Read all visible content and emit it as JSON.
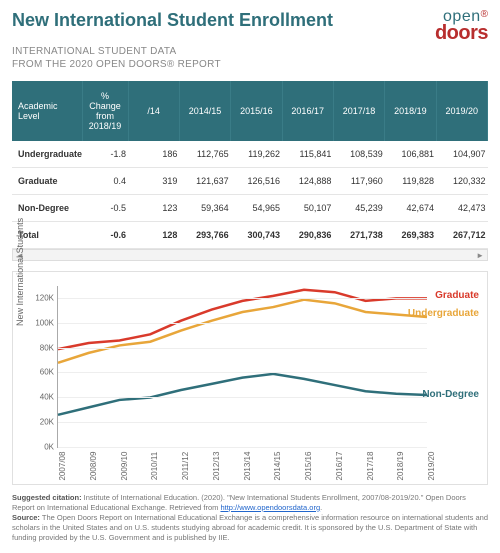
{
  "header": {
    "title": "New International Student Enrollment",
    "subtitle_line1": "INTERNATIONAL STUDENT DATA",
    "subtitle_line2": "FROM THE 2020 OPEN DOORS® REPORT",
    "logo_top": "open",
    "logo_reg": "®",
    "logo_bottom": "doors"
  },
  "table": {
    "header_level": "Academic Level",
    "header_change": "% Change from 2018/19",
    "year_cols": [
      "/14",
      "2014/15",
      "2015/16",
      "2016/17",
      "2017/18",
      "2018/19",
      "2019/20"
    ],
    "rows": [
      {
        "label": "Undergraduate",
        "change": "-1.8",
        "vals": [
          "186",
          "112,765",
          "119,262",
          "115,841",
          "108,539",
          "106,881",
          "104,907"
        ]
      },
      {
        "label": "Graduate",
        "change": "0.4",
        "vals": [
          "319",
          "121,637",
          "126,516",
          "124,888",
          "117,960",
          "119,828",
          "120,332"
        ]
      },
      {
        "label": "Non-Degree",
        "change": "-0.5",
        "vals": [
          "123",
          "59,364",
          "54,965",
          "50,107",
          "45,239",
          "42,674",
          "42,473"
        ]
      },
      {
        "label": "Total",
        "change": "-0.6",
        "vals": [
          "128",
          "293,766",
          "300,743",
          "290,836",
          "271,738",
          "269,383",
          "267,712"
        ],
        "total": true
      }
    ]
  },
  "chart": {
    "y_label": "New International Students",
    "y_min": 0,
    "y_max": 130000,
    "y_ticks": [
      0,
      20000,
      40000,
      60000,
      80000,
      100000,
      120000
    ],
    "y_tick_labels": [
      "0K",
      "20K",
      "40K",
      "60K",
      "80K",
      "100K",
      "120K"
    ],
    "x_labels": [
      "2007/08",
      "2008/09",
      "2009/10",
      "2010/11",
      "2011/12",
      "2012/13",
      "2013/14",
      "2014/15",
      "2015/16",
      "2016/17",
      "2017/18",
      "2018/19",
      "2019/20"
    ],
    "series": [
      {
        "name": "Graduate",
        "color": "#d93a2b",
        "label_y": 122000,
        "values": [
          79000,
          84000,
          86000,
          91000,
          102000,
          111000,
          118000,
          122000,
          127000,
          125000,
          118000,
          120000,
          120000
        ]
      },
      {
        "name": "Undergraduate",
        "color": "#e8a63a",
        "label_y": 107000,
        "values": [
          68000,
          76000,
          82000,
          85000,
          94000,
          102000,
          109000,
          113000,
          119000,
          116000,
          109000,
          107000,
          105000
        ]
      },
      {
        "name": "Non-Degree",
        "color": "#2f6f7a",
        "label_y": 42000,
        "values": [
          26000,
          32000,
          38000,
          40000,
          46000,
          51000,
          56000,
          59000,
          55000,
          50000,
          45000,
          43000,
          42000
        ]
      }
    ],
    "line_width": 2.5,
    "background_color": "#ffffff",
    "grid_color": "#eeeeee",
    "axis_color": "#aaaaaa"
  },
  "footnotes": {
    "citation_label": "Suggested citation:",
    "citation_text": " Institute of International Education. (2020). \"New International Students Enrollment, 2007/08-2019/20.\" Open Doors Report on International Educational Exchange. Retrieved from ",
    "citation_link": "http://www.opendoorsdata.org",
    "source_label": "Source:",
    "source_text": " The Open Doors Report on International Educational Exchange is a comprehensive information resource on international students and scholars in the United States and on U.S. students studying abroad for academic credit. It is sponsored by the U.S. Department of State with funding provided by the U.S. Government and is published by IIE."
  }
}
